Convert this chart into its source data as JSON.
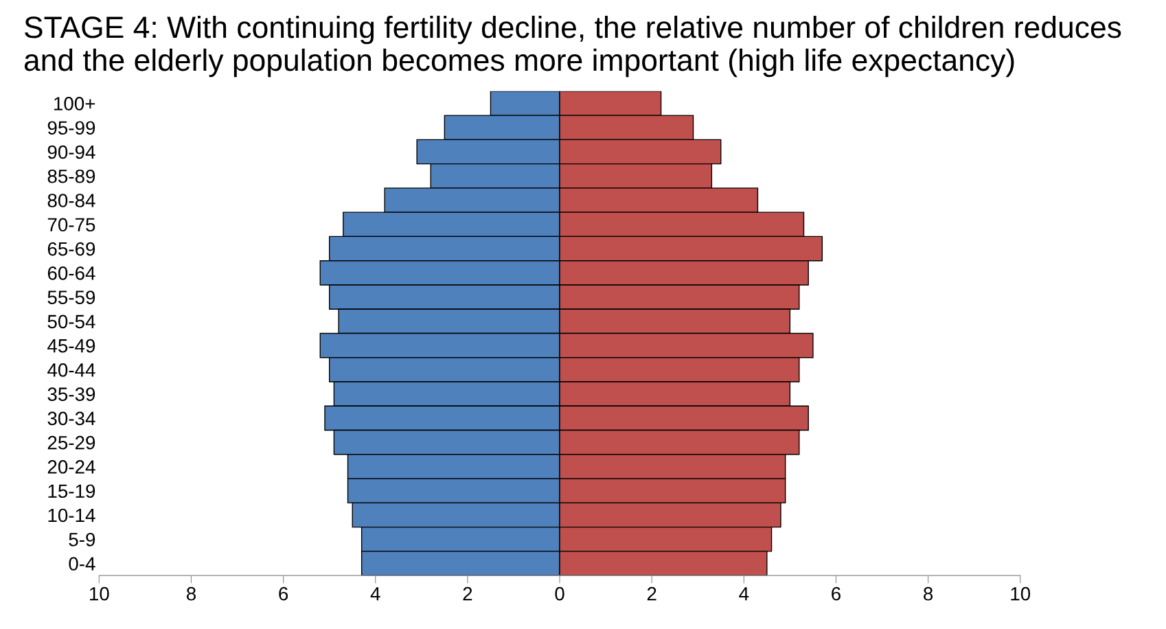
{
  "chart_data": {
    "type": "bar",
    "orientation": "horizontal",
    "stacked": true,
    "title": "STAGE 4: With continuing fertility decline, the relative number of children reduces and the elderly population becomes more important (high life expectancy)",
    "categories": [
      "100+",
      "95-99",
      "90-94",
      "85-89",
      "80-84",
      "70-75",
      "65-69",
      "60-64",
      "55-59",
      "50-54",
      "45-49",
      "40-44",
      "35-39",
      "30-34",
      "25-29",
      "20-24",
      "15-19",
      "10-14",
      "5-9",
      "0-4"
    ],
    "series": [
      {
        "color": "#4f81bd",
        "values": [
          -1.5,
          -2.5,
          -3.1,
          -2.8,
          -3.8,
          -4.7,
          -5.0,
          -5.2,
          -5.0,
          -4.8,
          -5.2,
          -5.0,
          -4.9,
          -5.1,
          -4.9,
          -4.6,
          -4.6,
          -4.5,
          -4.3,
          -4.3
        ]
      },
      {
        "color": "#c0504d",
        "values": [
          2.2,
          2.9,
          3.5,
          3.3,
          4.3,
          5.3,
          5.7,
          5.4,
          5.2,
          5.0,
          5.5,
          5.2,
          5.0,
          5.4,
          5.2,
          4.9,
          4.9,
          4.8,
          4.6,
          4.5
        ]
      }
    ],
    "xlim": [
      -10,
      10
    ],
    "xticks": [
      {
        "value": -10,
        "label": "10"
      },
      {
        "value": -8,
        "label": "8"
      },
      {
        "value": -6,
        "label": "6"
      },
      {
        "value": -4,
        "label": "4"
      },
      {
        "value": -2,
        "label": "2"
      },
      0,
      2,
      4,
      6,
      8,
      10
    ],
    "grid": false,
    "legend": false
  }
}
